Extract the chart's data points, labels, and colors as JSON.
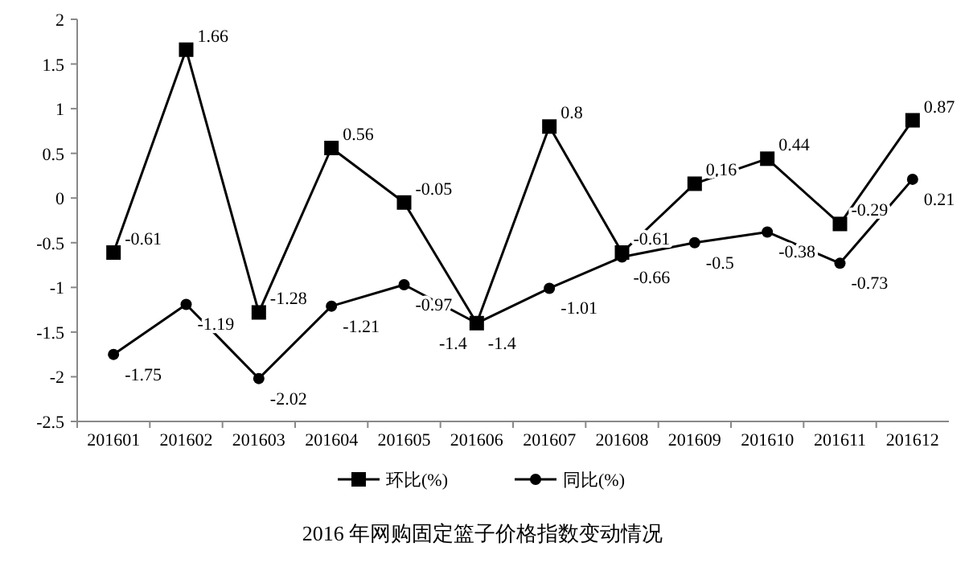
{
  "chart_data": {
    "type": "line",
    "annotations": [
      "2016 年网购固定篮子价格指数变动情况"
    ],
    "categories": [
      "201601",
      "201602",
      "201603",
      "201604",
      "201605",
      "201606",
      "201607",
      "201608",
      "201609",
      "201610",
      "201611",
      "201612"
    ],
    "series": [
      {
        "name": "环比(%)",
        "color": "#000000",
        "marker": "square",
        "values": [
          -0.61,
          1.66,
          -1.28,
          0.56,
          -0.05,
          -1.4,
          0.8,
          -0.61,
          0.16,
          0.44,
          -0.29,
          0.87
        ]
      },
      {
        "name": "同比(%)",
        "color": "#000000",
        "marker": "circle",
        "values": [
          -1.75,
          -1.19,
          -2.02,
          -1.21,
          -0.97,
          -1.4,
          -1.01,
          -0.66,
          -0.5,
          -0.38,
          -0.73,
          0.21
        ]
      }
    ],
    "ylim": [
      -2.5,
      2
    ],
    "yticks": [
      -2.5,
      -2,
      -1.5,
      -1,
      -0.5,
      0,
      0.5,
      1,
      1.5,
      2
    ],
    "grid": false,
    "legend": "bottom",
    "data_labels": true
  }
}
